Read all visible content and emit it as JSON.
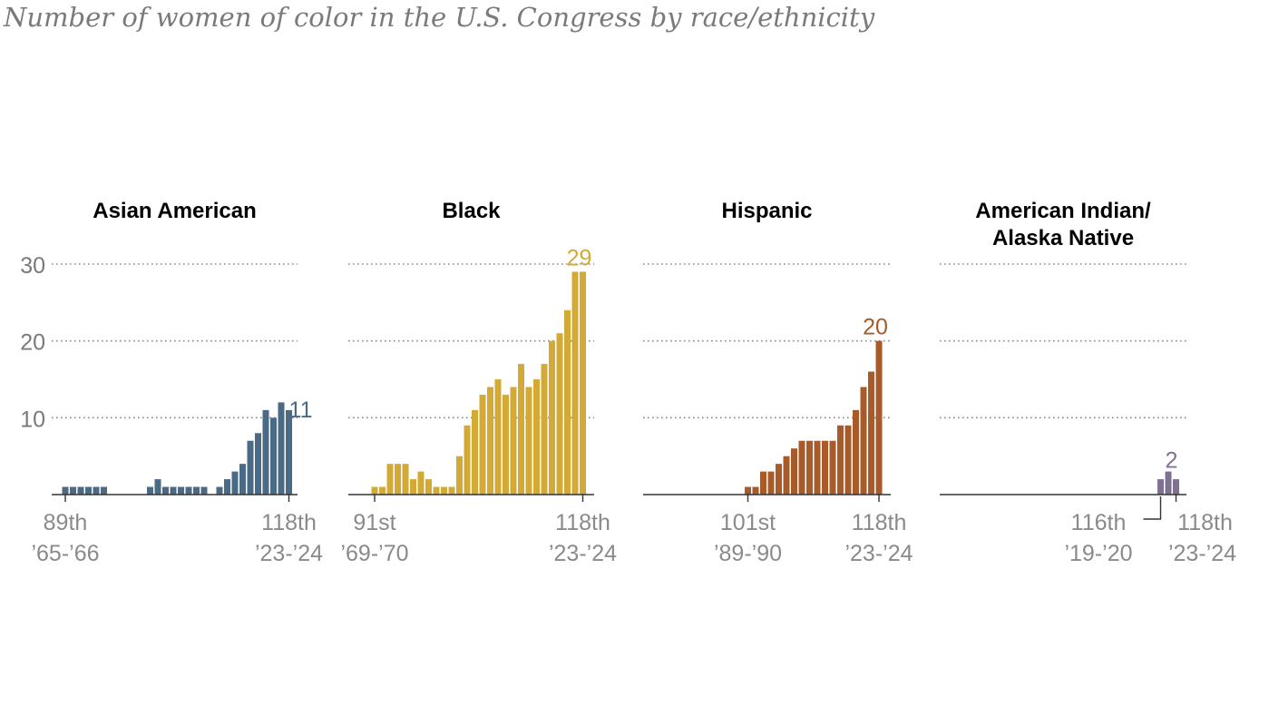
{
  "title": "Number of women of color in the U.S. Congress by race/ethnicity",
  "chart_data": {
    "type": "bar",
    "title": "Number of women of color in the U.S. Congress by race/ethnicity",
    "ylim": [
      0,
      30
    ],
    "yticks": [
      "10",
      "20",
      "30"
    ],
    "grid": true,
    "panels": [
      {
        "name": "Asian American",
        "color": "#4a6a86",
        "first_congress": 89,
        "last_congress": 118,
        "values": [
          1,
          1,
          1,
          1,
          1,
          1,
          0,
          0,
          0,
          0,
          0,
          1,
          2,
          1,
          1,
          1,
          1,
          1,
          1,
          0,
          1,
          2,
          3,
          4,
          7,
          8,
          11,
          10,
          12,
          11
        ],
        "end_label": "11",
        "x_labels": [
          {
            "congress": 89,
            "line1": "89th",
            "line2": "’65-’66"
          },
          {
            "congress": 118,
            "line1": "118th",
            "line2": "’23-’24"
          }
        ]
      },
      {
        "name": "Black",
        "color": "#d4aa36",
        "first_congress": 91,
        "last_congress": 118,
        "values": [
          1,
          1,
          4,
          4,
          4,
          2,
          3,
          2,
          1,
          1,
          1,
          5,
          9,
          11,
          13,
          14,
          15,
          13,
          14,
          17,
          14,
          15,
          17,
          20,
          21,
          24,
          29,
          29
        ],
        "end_label": "29",
        "x_labels": [
          {
            "congress": 91,
            "line1": "91st",
            "line2": "’69-’70"
          },
          {
            "congress": 118,
            "line1": "118th",
            "line2": "’23-’24"
          }
        ]
      },
      {
        "name": "Hispanic",
        "color": "#a85b28",
        "first_congress": 101,
        "last_congress": 118,
        "values": [
          1,
          1,
          3,
          3,
          4,
          5,
          6,
          7,
          7,
          7,
          7,
          7,
          9,
          9,
          11,
          14,
          16,
          20
        ],
        "end_label": "20",
        "x_labels": [
          {
            "congress": 101,
            "line1": "101st",
            "line2": "’89-’90"
          },
          {
            "congress": 118,
            "line1": "118th",
            "line2": "’23-’24"
          }
        ]
      },
      {
        "name": "American Indian/ Alaska Native",
        "name_lines": [
          "American Indian/",
          "Alaska Native"
        ],
        "color": "#7e7193",
        "first_congress": 116,
        "last_congress": 118,
        "values": [
          2,
          3,
          2
        ],
        "end_label": "2",
        "x_labels": [
          {
            "congress": 116,
            "line1": "116th",
            "line2": "’19-’20"
          },
          {
            "congress": 118,
            "line1": "118th",
            "line2": "’23-’24"
          }
        ]
      }
    ]
  }
}
